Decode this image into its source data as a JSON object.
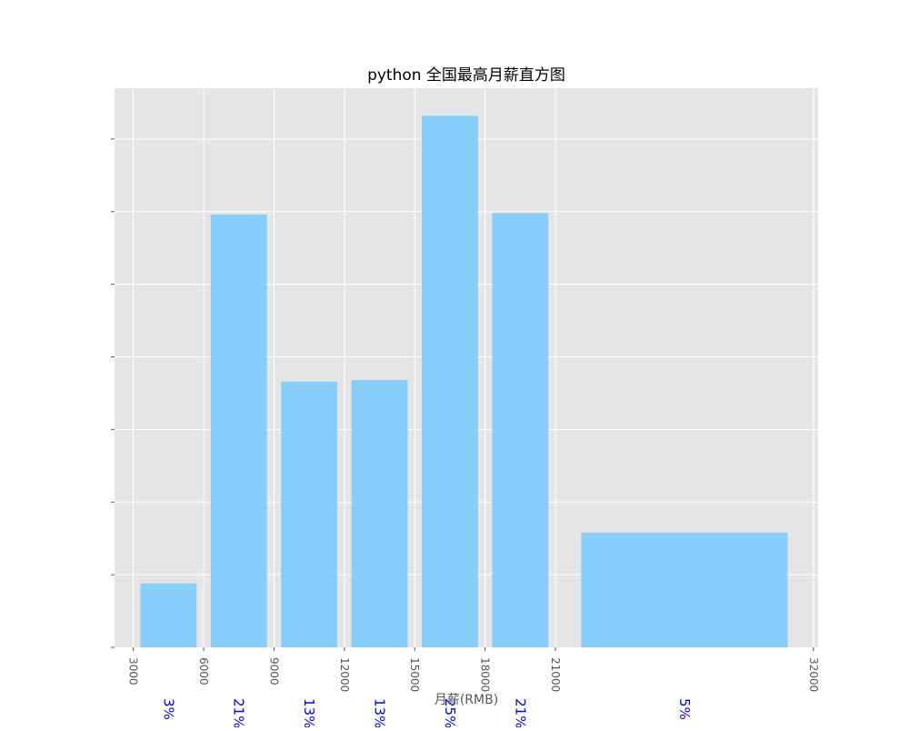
{
  "chart_data": {
    "type": "bar",
    "title": "python 全国最高月薪直方图",
    "xlabel": "月薪(RMB)",
    "ylabel": "",
    "xlim": [
      2200,
      32200
    ],
    "ylim": [
      0,
      3.85e-05
    ],
    "grid": true,
    "bin_edges": [
      3000,
      6000,
      9000,
      12000,
      15000,
      18000,
      21000,
      32000
    ],
    "x_ticks": [
      3000,
      6000,
      9000,
      12000,
      15000,
      18000,
      21000,
      32000
    ],
    "x_tick_labels": [
      "3000",
      "6000",
      "9000",
      "12000",
      "15000",
      "18000",
      "21000",
      "32000"
    ],
    "y_ticks": [
      0,
      5e-06,
      1e-05,
      1.5e-05,
      2e-05,
      2.5e-05,
      3e-05,
      3.5e-05
    ],
    "values": [
      4.4e-06,
      2.98e-05,
      1.83e-05,
      1.84e-05,
      3.66e-05,
      2.99e-05,
      7.9e-06
    ],
    "labels": [
      "3%",
      "21%",
      "13%",
      "13%",
      "25%",
      "21%",
      "5%"
    ],
    "colors": {
      "bar": "#87cefa",
      "plot_bg": "#e5e5e5",
      "grid": "#ffffff",
      "label": "#0000ff",
      "text": "#555555",
      "title": "#000000"
    }
  }
}
